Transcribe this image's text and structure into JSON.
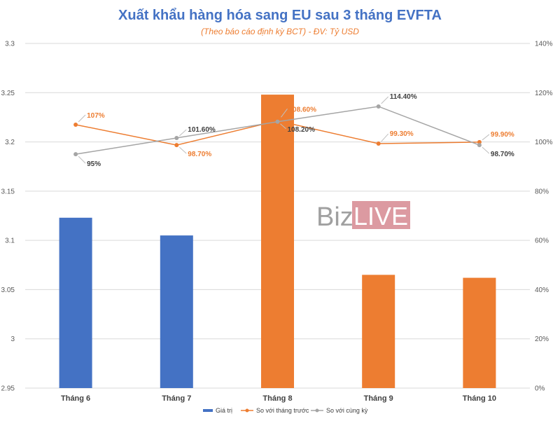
{
  "chart_data": {
    "type": "bar",
    "title": "Xuất khẩu hàng hóa sang EU sau 3 tháng EVFTA",
    "subtitle": "(Theo báo cáo định kỳ BCT)  - ĐV: Tỷ USD",
    "categories": [
      "Tháng 6",
      "Tháng 7",
      "Tháng 8",
      "Tháng 9",
      "Tháng 10"
    ],
    "y_left": {
      "min": 2.95,
      "max": 3.3,
      "ticks": [
        "2.95",
        "3",
        "3.05",
        "3.1",
        "3.15",
        "3.2",
        "3.25",
        "3.3"
      ]
    },
    "y_right": {
      "min": 0,
      "max": 140,
      "ticks": [
        "0%",
        "20%",
        "40%",
        "60%",
        "80%",
        "100%",
        "120%",
        "140%"
      ]
    },
    "series": [
      {
        "name": "Giá trị",
        "kind": "bar",
        "axis": "left",
        "values": [
          3.123,
          3.105,
          3.248,
          3.065,
          3.062
        ],
        "colors": [
          "#4472c4",
          "#4472c4",
          "#ed7d31",
          "#ed7d31",
          "#ed7d31"
        ]
      },
      {
        "name": "So với tháng trước",
        "kind": "line",
        "axis": "right",
        "color": "#ed7d31",
        "values": [
          107,
          98.7,
          108.6,
          99.3,
          99.9
        ],
        "labels": [
          "107%",
          "98.70%",
          "108.60%",
          "99.30%",
          "99.90%"
        ]
      },
      {
        "name": "So với cùng kỳ",
        "kind": "line",
        "axis": "right",
        "color": "#a5a5a5",
        "values": [
          95,
          101.6,
          108.2,
          114.4,
          98.7
        ],
        "labels": [
          "95%",
          "101.60%",
          "108.20%",
          "114.40%",
          "98.70%"
        ]
      }
    ],
    "legend_position": "bottom",
    "grid": true
  },
  "watermark": {
    "part1": "Biz",
    "part2": "LIVE"
  },
  "colors": {
    "title": "#4472c4",
    "subtitle": "#ed7d31",
    "bar_blue": "#4472c4",
    "bar_orange": "#ed7d31",
    "line_orange": "#ed7d31",
    "line_gray": "#a5a5a5",
    "label_dark": "#404040"
  }
}
